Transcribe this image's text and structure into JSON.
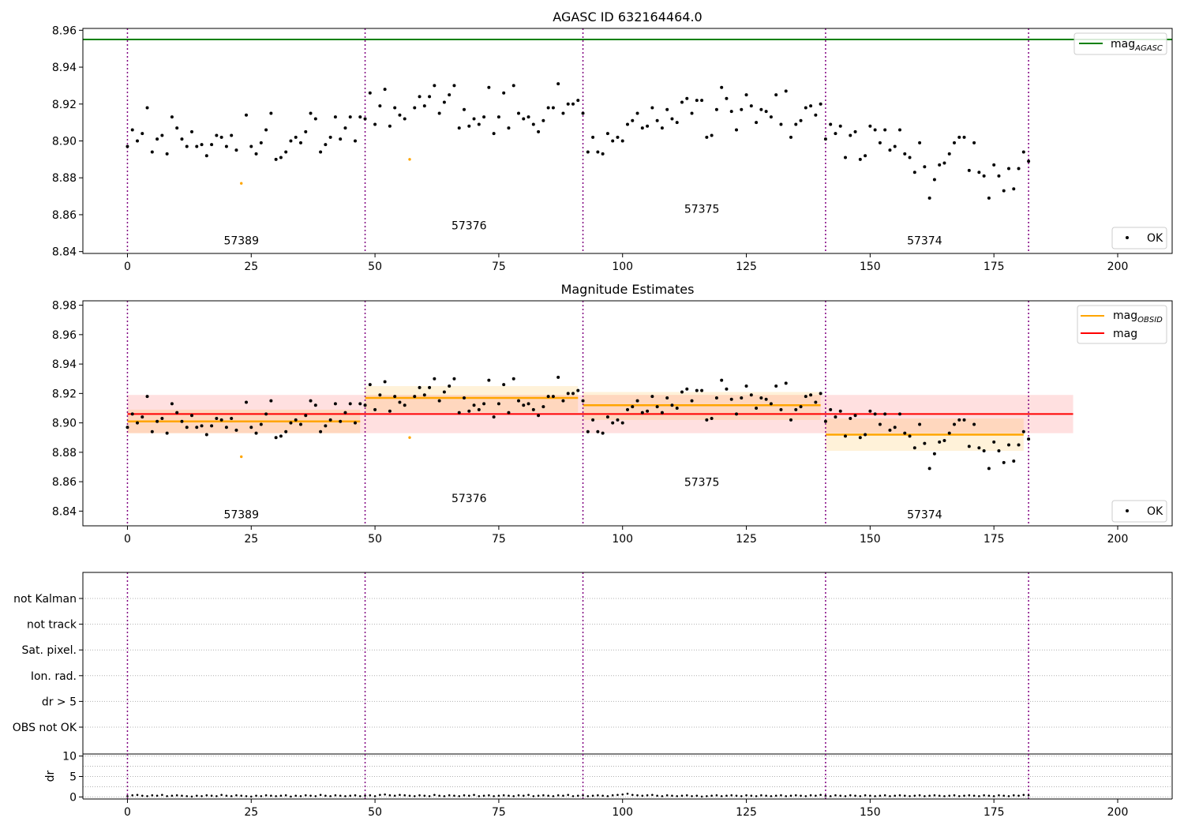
{
  "chart_data": [
    {
      "type": "scatter",
      "title": "AGASC ID 632164464.0",
      "xlim": [
        -9,
        211
      ],
      "ylim": [
        8.839,
        8.961
      ],
      "xticks": [
        0,
        25,
        50,
        75,
        100,
        125,
        150,
        175,
        200
      ],
      "yticks": [
        8.84,
        8.86,
        8.88,
        8.9,
        8.92,
        8.94,
        8.96
      ],
      "ytick_labels": [
        "8.84",
        "8.86",
        "8.88",
        "8.90",
        "8.92",
        "8.94",
        "8.96"
      ],
      "hlines": [
        {
          "name": "mag_AGASC",
          "y": 8.955,
          "color": "#008000"
        }
      ],
      "obsid_boundaries": [
        0,
        48,
        92,
        141,
        182
      ],
      "obsid_labels": [
        {
          "text": "57389",
          "x": 23,
          "y": 8.844
        },
        {
          "text": "57376",
          "x": 69,
          "y": 8.852
        },
        {
          "text": "57375",
          "x": 116,
          "y": 8.861
        },
        {
          "text": "57374",
          "x": 161,
          "y": 8.844
        }
      ],
      "outliers": [
        {
          "x": 23,
          "y": 8.877
        },
        {
          "x": 57,
          "y": 8.89
        }
      ],
      "legend_upper": {
        "label": "mag",
        "sub": "AGASC",
        "color": "#008000"
      },
      "legend_lower": {
        "label": "OK"
      },
      "grid": false
    },
    {
      "type": "scatter",
      "title": "Magnitude Estimates",
      "xlim": [
        -9,
        211
      ],
      "ylim": [
        8.83,
        8.983
      ],
      "xticks": [
        0,
        25,
        50,
        75,
        100,
        125,
        150,
        175,
        200
      ],
      "yticks": [
        8.84,
        8.86,
        8.88,
        8.9,
        8.92,
        8.94,
        8.96,
        8.98
      ],
      "ytick_labels": [
        "8.84",
        "8.86",
        "8.88",
        "8.90",
        "8.92",
        "8.94",
        "8.96",
        "8.98"
      ],
      "mag": {
        "value": 8.906,
        "band": [
          8.893,
          8.919
        ],
        "x_range": [
          0,
          191
        ],
        "color": "#ff0000"
      },
      "mag_obsid": [
        {
          "x0": 0,
          "x1": 47,
          "value": 8.901,
          "band": [
            8.893,
            8.909
          ]
        },
        {
          "x0": 48,
          "x1": 91,
          "value": 8.917,
          "band": [
            8.907,
            8.925
          ]
        },
        {
          "x0": 92,
          "x1": 140,
          "value": 8.912,
          "band": [
            8.902,
            8.921
          ]
        },
        {
          "x0": 141,
          "x1": 181,
          "value": 8.892,
          "band": [
            8.881,
            8.903
          ]
        }
      ],
      "obsid_boundaries": [
        0,
        48,
        92,
        141,
        182
      ],
      "obsid_labels": [
        {
          "text": "57389",
          "x": 23,
          "y": 8.835
        },
        {
          "text": "57376",
          "x": 69,
          "y": 8.846
        },
        {
          "text": "57375",
          "x": 116,
          "y": 8.857
        },
        {
          "text": "57374",
          "x": 161,
          "y": 8.835
        }
      ],
      "outliers": [
        {
          "x": 23,
          "y": 8.877
        },
        {
          "x": 57,
          "y": 8.89
        }
      ],
      "legend_upper": [
        {
          "label": "mag",
          "sub": "OBSID",
          "color": "#ffa500"
        },
        {
          "label": "mag",
          "sub": "",
          "color": "#ff0000"
        }
      ],
      "legend_lower": {
        "label": "OK"
      },
      "grid": false
    },
    {
      "type": "scatter",
      "title": "",
      "xlim": [
        -9,
        211
      ],
      "flag_labels": [
        "not Kalman",
        "not track",
        "Sat. pixel.",
        "Ion. rad.",
        "dr > 5",
        "OBS not OK"
      ],
      "obsid_boundaries": [
        0,
        48,
        92,
        141,
        182
      ],
      "grid": true
    },
    {
      "type": "scatter",
      "title": "",
      "ylabel": "dr",
      "xlim": [
        -9,
        211
      ],
      "ylim": [
        -0.5,
        10.5
      ],
      "xticks": [
        0,
        25,
        50,
        75,
        100,
        125,
        150,
        175,
        200
      ],
      "yticks": [
        0,
        5,
        10
      ],
      "ytick_labels": [
        "0",
        "5",
        "10"
      ],
      "obsid_boundaries": [
        0,
        48,
        92,
        141,
        182
      ],
      "dr_values": [
        0.2,
        0.4,
        0.5,
        0.3,
        0.2,
        0.4,
        0.3,
        0.5,
        0.2,
        0.3,
        0.4,
        0.3,
        0.2,
        0.1,
        0.3,
        0.2,
        0.4,
        0.3,
        0.2,
        0.5,
        0.3,
        0.2,
        0.4,
        0.3,
        0.2,
        0.1,
        0.3,
        0.2,
        0.4,
        0.3,
        0.2,
        0.3,
        0.4,
        0.1,
        0.3,
        0.2,
        0.4,
        0.3,
        0.2,
        0.5,
        0.3,
        0.2,
        0.4,
        0.3,
        0.2,
        0.3,
        0.4,
        0.2,
        0.3,
        0.4,
        0.2,
        0.5,
        0.6,
        0.4,
        0.3,
        0.5,
        0.4,
        0.3,
        0.2,
        0.4,
        0.3,
        0.2,
        0.5,
        0.3,
        0.2,
        0.4,
        0.3,
        0.2,
        0.4,
        0.3,
        0.5,
        0.2,
        0.3,
        0.4,
        0.2,
        0.3,
        0.4,
        0.3,
        0.2,
        0.4,
        0.3,
        0.5,
        0.2,
        0.3,
        0.4,
        0.3,
        0.2,
        0.4,
        0.3,
        0.5,
        0.2,
        0.3,
        0.4,
        0.2,
        0.3,
        0.4,
        0.3,
        0.2,
        0.4,
        0.5,
        0.6,
        0.8,
        0.5,
        0.4,
        0.3,
        0.4,
        0.5,
        0.3,
        0.2,
        0.4,
        0.3,
        0.2,
        0.3,
        0.4,
        0.2,
        0.3,
        0.1,
        0.2,
        0.3,
        0.4,
        0.2,
        0.3,
        0.4,
        0.3,
        0.2,
        0.4,
        0.3,
        0.2,
        0.4,
        0.3,
        0.2,
        0.3,
        0.4,
        0.2,
        0.3,
        0.4,
        0.3,
        0.2,
        0.4,
        0.3,
        0.5,
        0.3,
        0.2,
        0.4,
        0.3,
        0.2,
        0.4,
        0.3,
        0.2,
        0.4,
        0.3,
        0.2,
        0.3,
        0.4,
        0.2,
        0.3,
        0.4,
        0.3,
        0.2,
        0.3,
        0.4,
        0.2,
        0.3,
        0.4,
        0.3,
        0.2,
        0.3,
        0.4,
        0.2,
        0.3,
        0.4,
        0.3,
        0.2,
        0.4,
        0.3,
        0.2,
        0.4,
        0.3,
        0.2,
        0.4,
        0.3,
        0.5,
        0.4
      ]
    }
  ],
  "mag_points": [
    8.897,
    8.906,
    8.9,
    8.904,
    8.918,
    8.894,
    8.901,
    8.903,
    8.893,
    8.913,
    8.907,
    8.901,
    8.897,
    8.905,
    8.897,
    8.898,
    8.892,
    8.898,
    8.903,
    8.902,
    8.897,
    8.903,
    8.895,
    8.877,
    8.914,
    8.897,
    8.893,
    8.899,
    8.906,
    8.915,
    8.89,
    8.891,
    8.894,
    8.9,
    8.902,
    8.899,
    8.905,
    8.915,
    8.912,
    8.894,
    8.898,
    8.902,
    8.913,
    8.901,
    8.907,
    8.913,
    8.9,
    8.913,
    8.912,
    8.926,
    8.909,
    8.919,
    8.928,
    8.908,
    8.918,
    8.914,
    8.912,
    8.89,
    8.918,
    8.924,
    8.919,
    8.924,
    8.93,
    8.915,
    8.921,
    8.925,
    8.93,
    8.907,
    8.917,
    8.908,
    8.912,
    8.909,
    8.913,
    8.929,
    8.904,
    8.913,
    8.926,
    8.907,
    8.93,
    8.915,
    8.912,
    8.913,
    8.909,
    8.905,
    8.911,
    8.918,
    8.918,
    8.931,
    8.915,
    8.92,
    8.92,
    8.922,
    8.915,
    8.894,
    8.902,
    8.894,
    8.893,
    8.904,
    8.9,
    8.902,
    8.9,
    8.909,
    8.911,
    8.915,
    8.907,
    8.908,
    8.918,
    8.911,
    8.907,
    8.917,
    8.912,
    8.91,
    8.921,
    8.923,
    8.915,
    8.922,
    8.922,
    8.902,
    8.903,
    8.917,
    8.929,
    8.923,
    8.916,
    8.906,
    8.917,
    8.925,
    8.919,
    8.91,
    8.917,
    8.916,
    8.913,
    8.925,
    8.909,
    8.927,
    8.902,
    8.909,
    8.911,
    8.918,
    8.919,
    8.914,
    8.92,
    8.901,
    8.909,
    8.904,
    8.908,
    8.891,
    8.903,
    8.905,
    8.89,
    8.892,
    8.908,
    8.906,
    8.899,
    8.906,
    8.895,
    8.897,
    8.906,
    8.893,
    8.891,
    8.883,
    8.899,
    8.886,
    8.869,
    8.879,
    8.887,
    8.888,
    8.893,
    8.899,
    8.902,
    8.902,
    8.884,
    8.899,
    8.883,
    8.881,
    8.869,
    8.887,
    8.881,
    8.873,
    8.885,
    8.874,
    8.885,
    8.894,
    8.889
  ]
}
